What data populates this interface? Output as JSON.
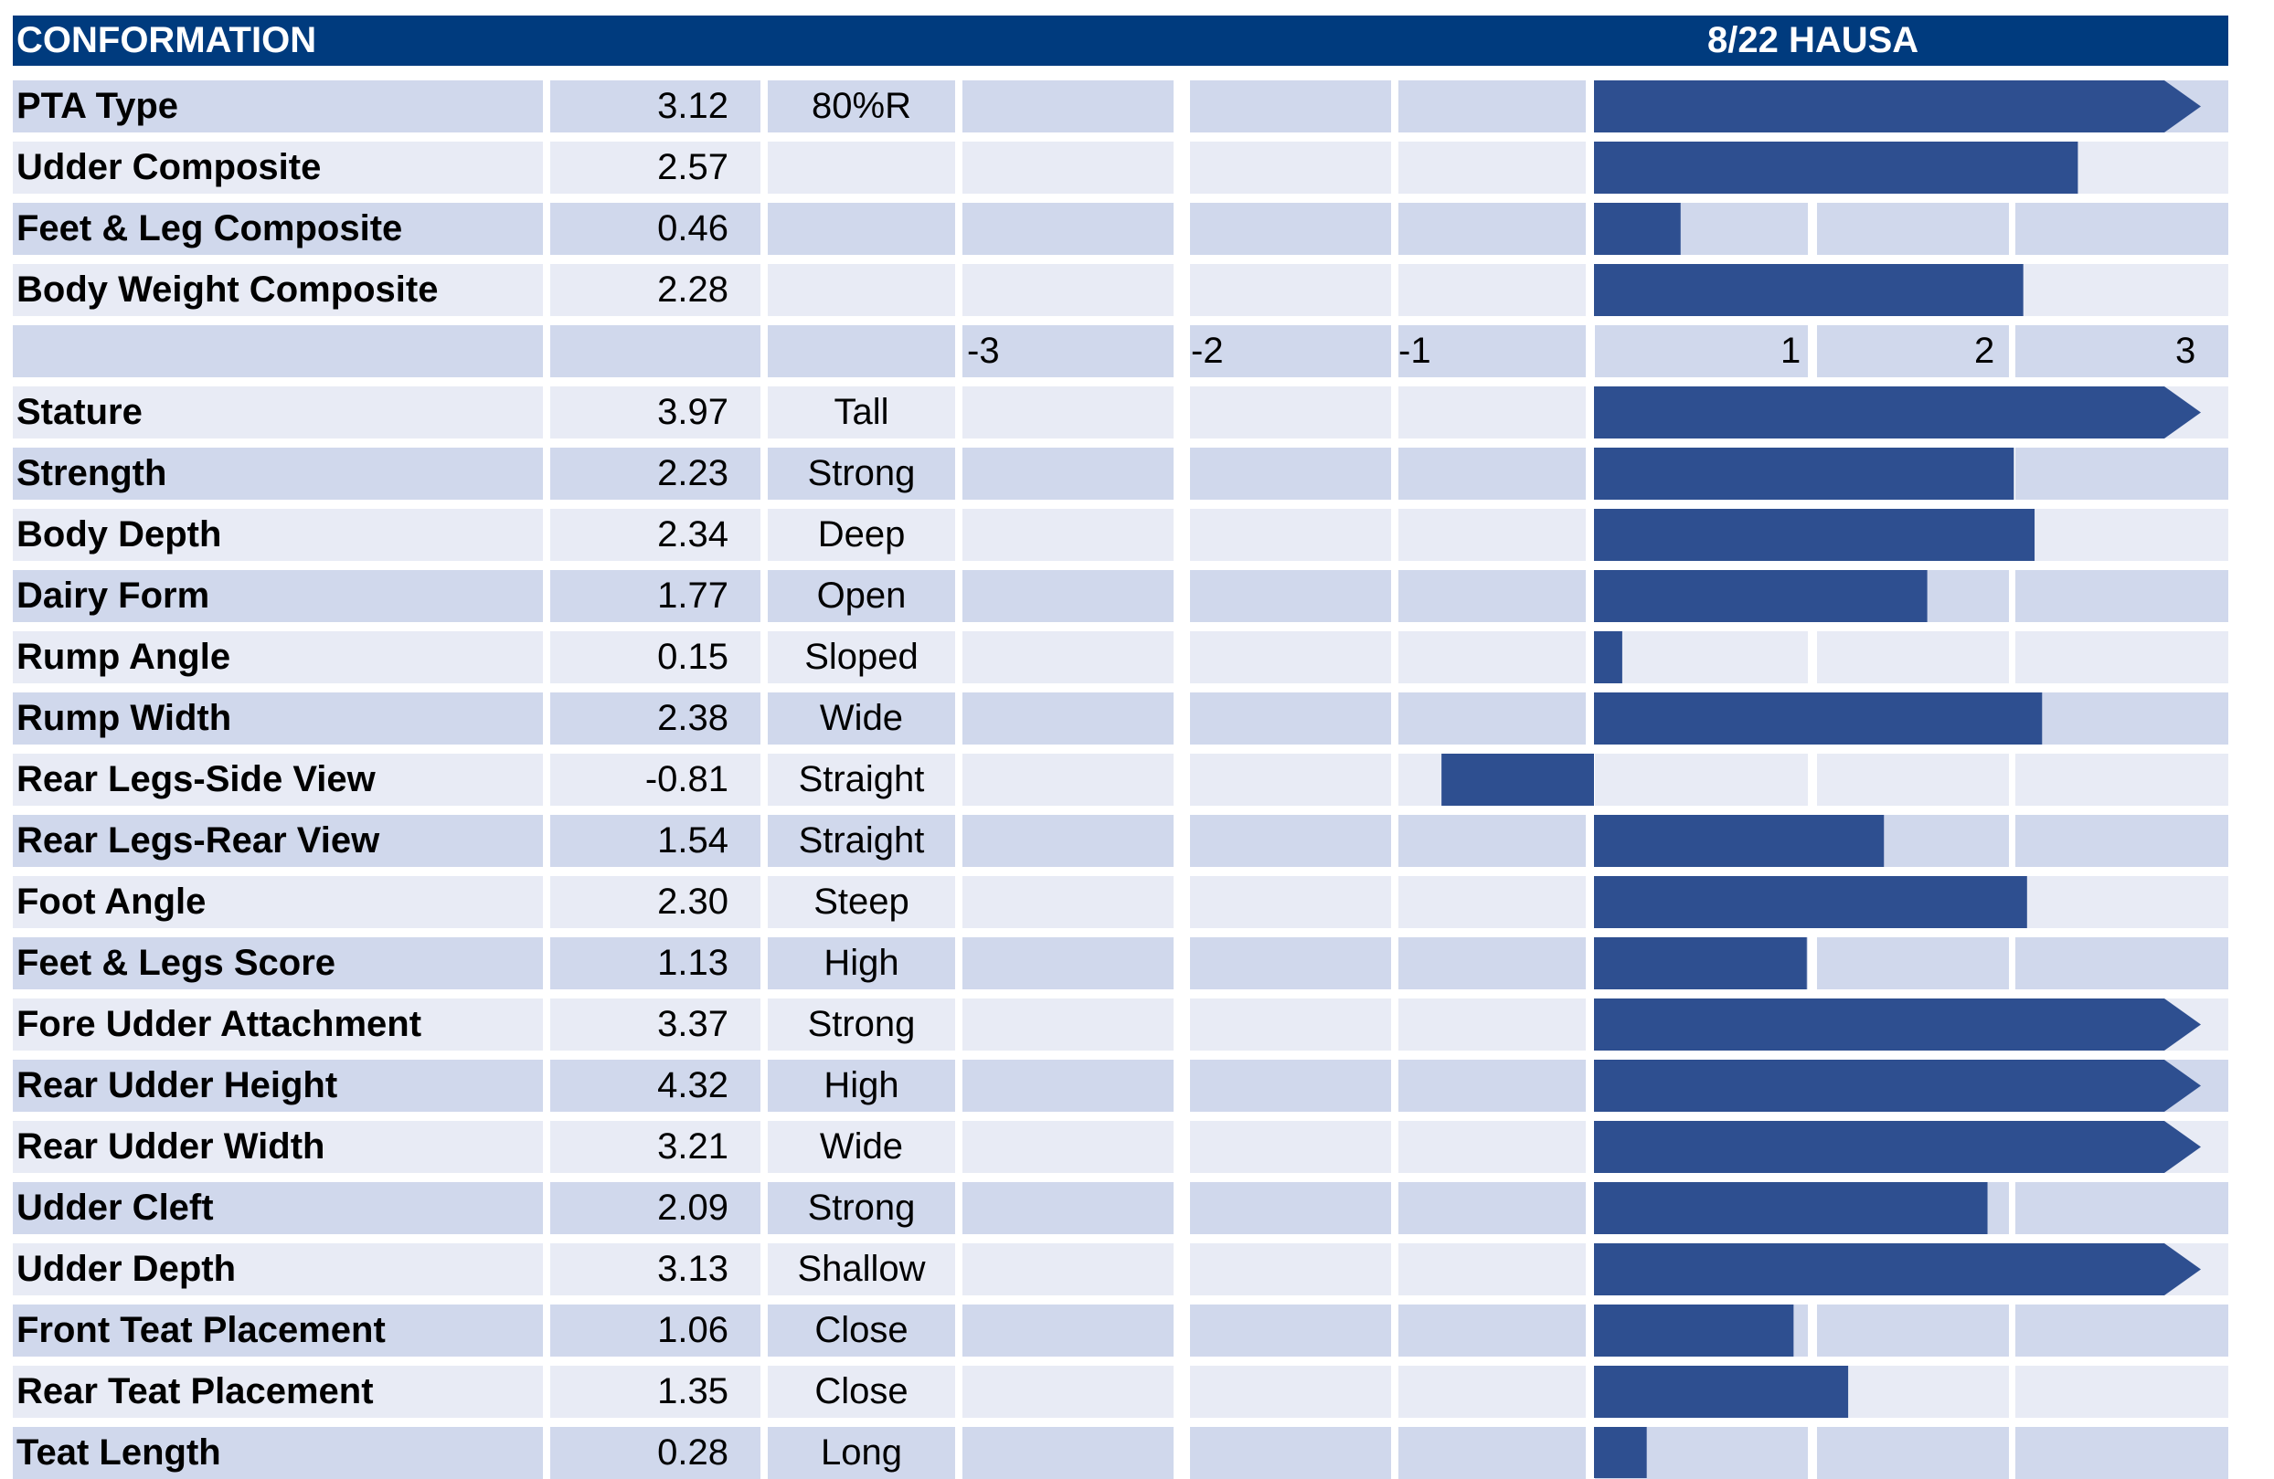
{
  "header": {
    "title": "CONFORMATION",
    "date_label": "8/22 HAUSA"
  },
  "colors": {
    "header": "#003B7E",
    "bar": "#2E4F90",
    "row_even": "#D0D8EC",
    "row_odd": "#E8EBF5"
  },
  "chart_data": {
    "type": "bar",
    "orientation": "horizontal",
    "x_ticks": [
      "-3",
      "-2",
      "-1",
      "1",
      "2",
      "3"
    ],
    "xlim": [
      -3,
      3
    ],
    "composites": [
      {
        "label": "PTA Type",
        "value": "3.12",
        "note": "80%R"
      },
      {
        "label": "Udder Composite",
        "value": "2.57",
        "note": ""
      },
      {
        "label": "Feet & Leg Composite",
        "value": "0.46",
        "note": ""
      },
      {
        "label": "Body Weight Composite",
        "value": "2.28",
        "note": ""
      }
    ],
    "traits": [
      {
        "label": "Stature",
        "value": "3.97",
        "note": "Tall"
      },
      {
        "label": "Strength",
        "value": "2.23",
        "note": "Strong"
      },
      {
        "label": "Body Depth",
        "value": "2.34",
        "note": "Deep"
      },
      {
        "label": "Dairy Form",
        "value": "1.77",
        "note": "Open"
      },
      {
        "label": "Rump Angle",
        "value": "0.15",
        "note": "Sloped"
      },
      {
        "label": "Rump Width",
        "value": "2.38",
        "note": "Wide"
      },
      {
        "label": "Rear Legs-Side View",
        "value": "-0.81",
        "note": "Straight"
      },
      {
        "label": "Rear Legs-Rear View",
        "value": "1.54",
        "note": "Straight"
      },
      {
        "label": "Foot Angle",
        "value": "2.30",
        "note": "Steep"
      },
      {
        "label": "Feet & Legs Score",
        "value": "1.13",
        "note": "High"
      },
      {
        "label": "Fore Udder Attachment",
        "value": "3.37",
        "note": "Strong"
      },
      {
        "label": "Rear Udder Height",
        "value": "4.32",
        "note": "High"
      },
      {
        "label": "Rear Udder Width",
        "value": "3.21",
        "note": "Wide"
      },
      {
        "label": "Udder Cleft",
        "value": "2.09",
        "note": "Strong"
      },
      {
        "label": "Udder Depth",
        "value": "3.13",
        "note": "Shallow"
      },
      {
        "label": "Front Teat Placement",
        "value": "1.06",
        "note": "Close"
      },
      {
        "label": "Rear Teat Placement",
        "value": "1.35",
        "note": "Close"
      },
      {
        "label": "Teat Length",
        "value": "0.28",
        "note": "Long"
      }
    ]
  }
}
